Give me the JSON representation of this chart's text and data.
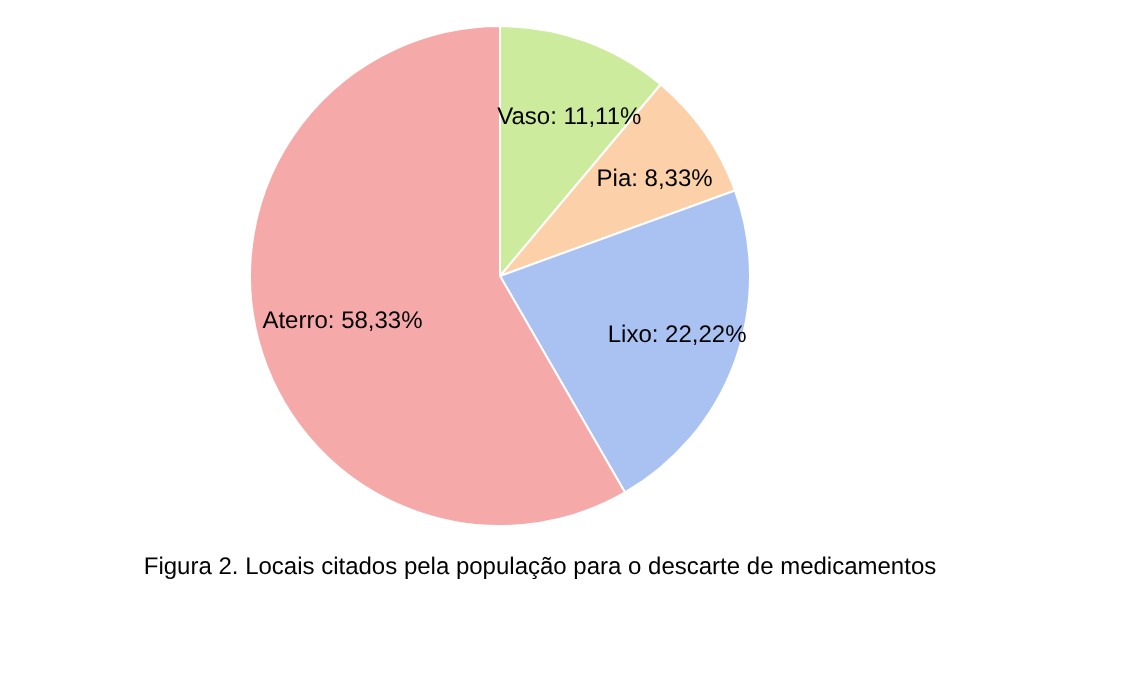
{
  "chart_data": {
    "type": "pie",
    "categories": [
      "Vaso",
      "Pia",
      "Lixo",
      "Aterro"
    ],
    "values": [
      11.11,
      8.33,
      22.22,
      58.33
    ],
    "colors": [
      "#cdeb9c",
      "#fcd0a8",
      "#aac2f2",
      "#f6a9a9"
    ],
    "value_labels": [
      ": 11,11%",
      ": 8,33%",
      ": 22,22%",
      ": 58,33%"
    ],
    "annotations": [
      "Figura 2. Locais citados pela população para o descarte de medicamentos"
    ]
  }
}
